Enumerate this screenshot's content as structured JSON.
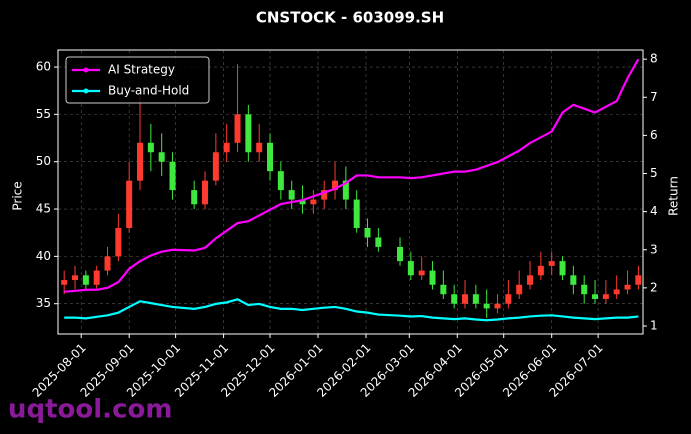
{
  "chart_data": {
    "type": "candlestick",
    "title": "CNSTOCK - 603099.SH",
    "ylabel": "Price",
    "y2label": "Return",
    "watermark": "uqtool.com",
    "legend": "upper left",
    "grid": true,
    "up_color": "#ff3b30",
    "down_color": "#3ee83e",
    "xlim": [
      "2025-07-17",
      "2026-07-30"
    ],
    "xticks": [
      "2025-08-01",
      "2025-09-01",
      "2025-10-01",
      "2025-11-01",
      "2025-12-01",
      "2026-01-01",
      "2026-02-01",
      "2026-03-01",
      "2026-04-01",
      "2026-05-01",
      "2026-06-01",
      "2026-07-01"
    ],
    "ylim": [
      31.8,
      61.8
    ],
    "yticks": [
      35,
      40,
      45,
      50,
      55,
      60
    ],
    "y2lim": [
      0.79,
      8.24
    ],
    "y2ticks": [
      1,
      2,
      3,
      4,
      5,
      6,
      7,
      8
    ],
    "x": [
      "2025-07-21",
      "2025-07-28",
      "2025-08-04",
      "2025-08-11",
      "2025-08-18",
      "2025-08-25",
      "2025-09-01",
      "2025-09-08",
      "2025-09-15",
      "2025-09-22",
      "2025-09-29",
      "2025-10-13",
      "2025-10-20",
      "2025-10-27",
      "2025-11-03",
      "2025-11-10",
      "2025-11-17",
      "2025-11-24",
      "2025-12-01",
      "2025-12-08",
      "2025-12-15",
      "2025-12-22",
      "2025-12-29",
      "2026-01-05",
      "2026-01-12",
      "2026-01-19",
      "2026-01-26",
      "2026-02-02",
      "2026-02-09",
      "2026-02-23",
      "2026-03-02",
      "2026-03-09",
      "2026-03-16",
      "2026-03-23",
      "2026-03-30",
      "2026-04-06",
      "2026-04-13",
      "2026-04-20",
      "2026-04-27",
      "2026-05-04",
      "2026-05-11",
      "2026-05-18",
      "2026-05-25",
      "2026-06-01",
      "2026-06-08",
      "2026-06-15",
      "2026-06-22",
      "2026-06-29",
      "2026-07-06",
      "2026-07-13",
      "2026-07-20",
      "2026-07-27"
    ],
    "open": [
      37,
      37.5,
      38,
      37,
      38.5,
      40,
      43,
      48,
      52,
      51,
      50,
      47,
      45.5,
      48,
      51,
      52,
      55,
      51,
      52,
      49,
      47,
      46,
      45.5,
      46,
      47,
      48,
      46,
      43,
      42,
      41,
      39.5,
      38,
      38.5,
      37,
      36,
      35,
      36,
      35,
      34.5,
      35,
      36,
      37,
      38,
      39,
      39.5,
      38,
      37,
      36,
      35.5,
      36,
      36.5,
      37
    ],
    "high": [
      38.5,
      39,
      38.5,
      39,
      41,
      44.5,
      50,
      57,
      54,
      53,
      51,
      48,
      49,
      53,
      54,
      60.3,
      56,
      54,
      53,
      50,
      48,
      47.5,
      47,
      48,
      50,
      49.5,
      47,
      44,
      43,
      42,
      40.5,
      40,
      39.5,
      38.5,
      37,
      37.5,
      37,
      36.5,
      36,
      37.5,
      38.5,
      39.5,
      40.5,
      40.5,
      40,
      39,
      38,
      37.5,
      37.5,
      38,
      38.5,
      39
    ],
    "low": [
      36,
      36.5,
      36.5,
      36.5,
      38,
      39.5,
      42.5,
      47,
      49,
      48.5,
      46,
      45,
      45,
      47.5,
      50,
      51,
      50,
      50,
      48,
      46,
      45,
      44.5,
      44.5,
      45,
      46,
      45,
      42.5,
      41,
      40.5,
      39,
      37.5,
      37.5,
      36.5,
      35.5,
      34.5,
      34.5,
      34.5,
      33.5,
      34,
      34.5,
      35.5,
      36.5,
      37.5,
      38,
      37.5,
      36,
      35,
      35,
      35,
      35.5,
      36,
      36.5
    ],
    "close": [
      37.5,
      38,
      37,
      38.5,
      40,
      43,
      48,
      52,
      51,
      50,
      47,
      45.5,
      48,
      51,
      52,
      55,
      51,
      52,
      49,
      47,
      46,
      45.5,
      46,
      47,
      48,
      46,
      43,
      42,
      41,
      39.5,
      38,
      38.5,
      37,
      36,
      35,
      36,
      35,
      34.5,
      35,
      36,
      37,
      38,
      39,
      39.5,
      38,
      37,
      36,
      35.5,
      36,
      36.5,
      37,
      38
    ],
    "series": [
      {
        "name": "AI Strategy",
        "color": "#ff00ff",
        "axis": "y2",
        "values": [
          1.9,
          1.92,
          1.95,
          1.95,
          2.0,
          2.15,
          2.5,
          2.7,
          2.85,
          2.95,
          3.0,
          2.98,
          3.05,
          3.3,
          3.5,
          3.7,
          3.75,
          3.9,
          4.05,
          4.2,
          4.25,
          4.3,
          4.4,
          4.5,
          4.6,
          4.75,
          4.95,
          4.95,
          4.9,
          4.9,
          4.88,
          4.9,
          4.95,
          5.0,
          5.05,
          5.05,
          5.1,
          5.2,
          5.3,
          5.45,
          5.6,
          5.8,
          5.95,
          6.1,
          6.6,
          6.8,
          6.7,
          6.6,
          6.75,
          6.9,
          7.5,
          8.0
        ]
      },
      {
        "name": "Buy-and-Hold",
        "color": "#00ffff",
        "axis": "y2",
        "values": [
          1.22,
          1.22,
          1.2,
          1.24,
          1.28,
          1.35,
          1.5,
          1.65,
          1.6,
          1.55,
          1.5,
          1.45,
          1.5,
          1.58,
          1.62,
          1.7,
          1.55,
          1.58,
          1.5,
          1.45,
          1.45,
          1.42,
          1.45,
          1.48,
          1.5,
          1.45,
          1.38,
          1.35,
          1.3,
          1.27,
          1.25,
          1.26,
          1.22,
          1.2,
          1.18,
          1.2,
          1.17,
          1.15,
          1.17,
          1.2,
          1.22,
          1.25,
          1.27,
          1.28,
          1.25,
          1.22,
          1.2,
          1.18,
          1.2,
          1.22,
          1.22,
          1.25
        ]
      }
    ]
  }
}
